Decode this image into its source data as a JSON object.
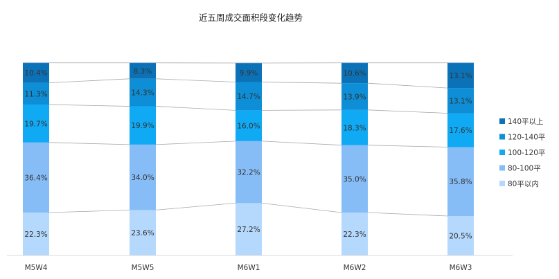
{
  "chart_data": {
    "type": "bar",
    "stacked": true,
    "percent_stacked": true,
    "title": "近五周成交面积段变化趋势",
    "categories": [
      "M5W4",
      "M5W5",
      "M6W1",
      "M6W2",
      "M6W3"
    ],
    "series": [
      {
        "name": "80平以内",
        "color": "#b5d8fd",
        "values": [
          22.3,
          23.6,
          27.2,
          22.3,
          20.5
        ]
      },
      {
        "name": "80-100平",
        "color": "#87bdf7",
        "values": [
          36.4,
          34.0,
          32.2,
          35.0,
          35.8
        ]
      },
      {
        "name": "100-120平",
        "color": "#10a9f4",
        "values": [
          19.7,
          19.9,
          16.0,
          18.3,
          17.6
        ]
      },
      {
        "name": "120-140平",
        "color": "#0d8ed6",
        "values": [
          11.3,
          14.3,
          14.7,
          13.9,
          13.1
        ]
      },
      {
        "name": "140平以上",
        "color": "#0b72b8",
        "values": [
          10.4,
          8.3,
          9.9,
          10.6,
          13.1
        ]
      }
    ],
    "value_labels": [
      [
        "22.3%",
        "23.6%",
        "27.2%",
        "22.3%",
        "20.5%"
      ],
      [
        "36.4%",
        "34.0%",
        "32.2%",
        "35.0%",
        "35.8%"
      ],
      [
        "19.7%",
        "19.9%",
        "16.0%",
        "18.3%",
        "17.6%"
      ],
      [
        "11.3%",
        "14.3%",
        "14.7%",
        "13.9%",
        "13.1%"
      ],
      [
        "10.4%",
        "8.3%",
        "9.9%",
        "10.6%",
        "13.1%"
      ]
    ],
    "ylim": [
      0,
      100
    ],
    "grid": false,
    "connector_lines": true,
    "legend_placement": "right"
  }
}
